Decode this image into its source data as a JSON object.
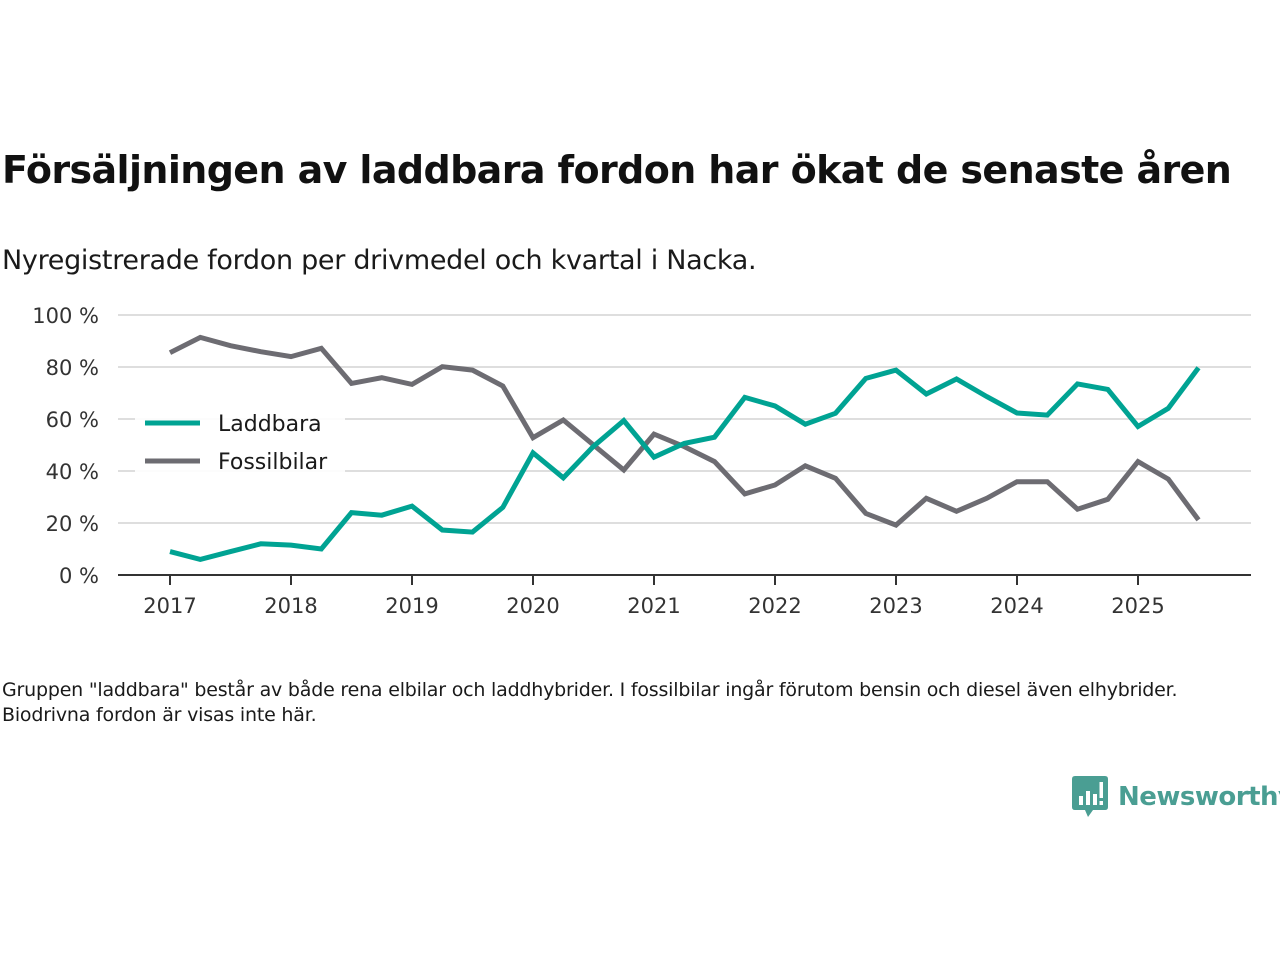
{
  "header": {
    "title": "Försäljningen av laddbara fordon har ökat de senaste åren",
    "subtitle": "Nyregistrerade fordon per drivmedel och kvartal i Nacka."
  },
  "footnote": "Gruppen \"laddbara\" består av både rena elbilar och laddhybrider. I fossilbilar ingår förutom bensin och diesel även elhybrider. Biodrivna fordon är visas inte här.",
  "brand": {
    "name": "Newsworthy",
    "color": "#4a9e93",
    "icon": "newsworthy-bar-chart-speech-bubble-icon"
  },
  "chart_data": {
    "type": "line",
    "title": "Försäljningen av laddbara fordon har ökat de senaste åren",
    "subtitle": "Nyregistrerade fordon per drivmedel och kvartal i Nacka.",
    "xlabel": "",
    "ylabel": "",
    "x": [
      "2017Q1",
      "2017Q2",
      "2017Q3",
      "2017Q4",
      "2018Q1",
      "2018Q2",
      "2018Q3",
      "2018Q4",
      "2019Q1",
      "2019Q2",
      "2019Q3",
      "2019Q4",
      "2020Q1",
      "2020Q2",
      "2020Q3",
      "2020Q4",
      "2021Q1",
      "2021Q2",
      "2021Q3",
      "2021Q4",
      "2022Q1",
      "2022Q2",
      "2022Q3",
      "2022Q4",
      "2023Q1",
      "2023Q2",
      "2023Q3",
      "2023Q4",
      "2024Q1",
      "2024Q2",
      "2024Q3",
      "2024Q4",
      "2025Q1",
      "2025Q2",
      "2025Q3"
    ],
    "x_tick_labels": [
      "2017",
      "2018",
      "2019",
      "2020",
      "2021",
      "2022",
      "2023",
      "2024",
      "2025"
    ],
    "y_tick_labels": [
      "0 %",
      "20 %",
      "40 %",
      "60 %",
      "80 %",
      "100 %"
    ],
    "y_ticks": [
      0,
      20,
      40,
      60,
      80,
      100
    ],
    "ylim": [
      0,
      100
    ],
    "grid": true,
    "legend_position": "left-middle",
    "series": [
      {
        "name": "Laddbara",
        "color": "#00a393",
        "values": [
          9,
          6,
          9,
          12,
          11.5,
          10,
          24,
          23,
          26.5,
          17.3,
          16.5,
          26,
          47,
          37.4,
          49.5,
          59.4,
          45.3,
          50.6,
          53,
          68.3,
          65,
          58,
          62.2,
          75.6,
          78.8,
          69.6,
          75.4,
          68.6,
          62.3,
          61.5,
          73.5,
          71.4,
          57.1,
          64.1,
          79.7
        ]
      },
      {
        "name": "Fossilbilar",
        "color": "#6d6c72",
        "values": [
          85.5,
          91.4,
          88.2,
          85.9,
          84,
          87.2,
          73.7,
          75.9,
          73.3,
          80.1,
          78.8,
          72.7,
          52.8,
          59.6,
          50,
          40.4,
          54.2,
          49.4,
          43.6,
          31.2,
          34.6,
          42,
          37.2,
          23.7,
          19.2,
          29.5,
          24.5,
          29.5,
          35.9,
          35.9,
          25.3,
          29.1,
          43.6,
          36.9,
          21.2
        ]
      }
    ]
  }
}
